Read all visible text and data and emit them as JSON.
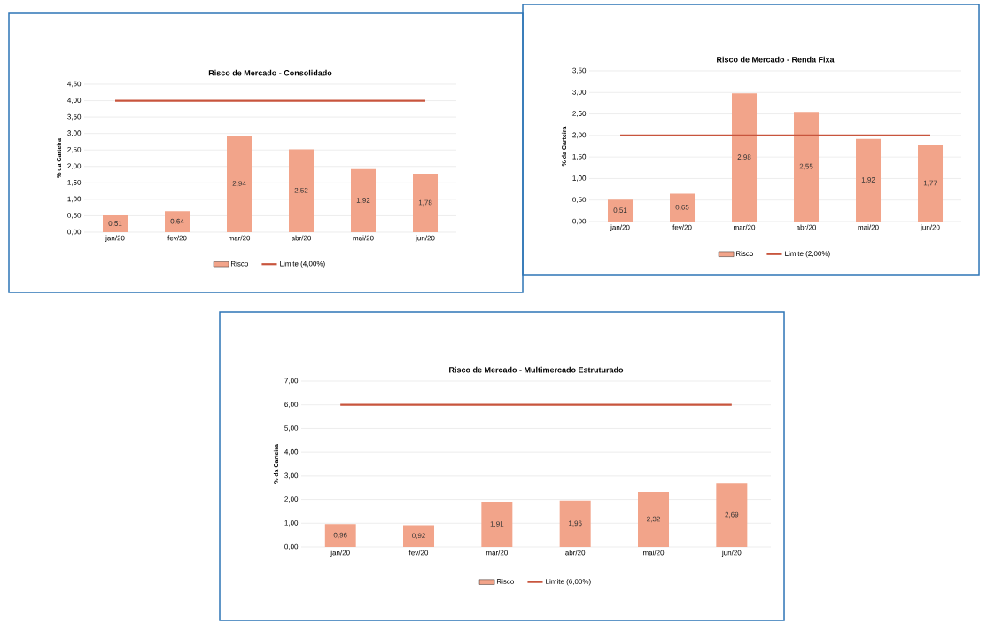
{
  "chart_data": [
    {
      "type": "bar",
      "title": "Risco de Mercado - Consolidado",
      "ylabel": "% da Carteira",
      "categories": [
        "jan/20",
        "fev/20",
        "mar/20",
        "abr/20",
        "mai/20",
        "jun/20"
      ],
      "series": [
        {
          "name": "Risco",
          "color": "#f2a48a",
          "values": [
            0.51,
            0.64,
            2.94,
            2.52,
            1.92,
            1.78
          ],
          "value_labels": [
            "0,51",
            "0,64",
            "2,94",
            "2,52",
            "1,92",
            "1,78"
          ]
        },
        {
          "name": "Limite (4,00%)",
          "type": "line",
          "color": "#c8553d",
          "values": [
            4.0,
            4.0,
            4.0,
            4.0,
            4.0,
            4.0
          ]
        }
      ],
      "ylim": [
        0,
        4.5
      ],
      "yticks": [
        {
          "value": 0,
          "label": "0,00"
        },
        {
          "value": 0.5,
          "label": "0,50"
        },
        {
          "value": 1,
          "label": "1,00"
        },
        {
          "value": 1.5,
          "label": "1,50"
        },
        {
          "value": 2,
          "label": "2,00"
        },
        {
          "value": 2.5,
          "label": "2,50"
        },
        {
          "value": 3,
          "label": "3,00"
        },
        {
          "value": 3.5,
          "label": "3,50"
        },
        {
          "value": 4,
          "label": "4,00"
        },
        {
          "value": 4.5,
          "label": "4,50"
        }
      ],
      "grid": "y",
      "legend": "bottom"
    },
    {
      "type": "bar",
      "title": "Risco de Mercado - Renda Fixa",
      "ylabel": "% da Carteira",
      "categories": [
        "jan/20",
        "fev/20",
        "mar/20",
        "abr/20",
        "mai/20",
        "jun/20"
      ],
      "series": [
        {
          "name": "Risco",
          "color": "#f2a48a",
          "values": [
            0.51,
            0.65,
            2.98,
            2.55,
            1.92,
            1.77
          ],
          "value_labels": [
            "0,51",
            "0,65",
            "2,98",
            "2,55",
            "1,92",
            "1,77"
          ]
        },
        {
          "name": "Limite (2,00%)",
          "type": "line",
          "color": "#c8553d",
          "values": [
            2.0,
            2.0,
            2.0,
            2.0,
            2.0,
            2.0
          ]
        }
      ],
      "ylim": [
        0,
        3.5
      ],
      "yticks": [
        {
          "value": 0,
          "label": "0,00"
        },
        {
          "value": 0.5,
          "label": "0,50"
        },
        {
          "value": 1,
          "label": "1,00"
        },
        {
          "value": 1.5,
          "label": "1,50"
        },
        {
          "value": 2,
          "label": "2,00"
        },
        {
          "value": 2.5,
          "label": "2,50"
        },
        {
          "value": 3,
          "label": "3,00"
        },
        {
          "value": 3.5,
          "label": "3,50"
        }
      ],
      "grid": "y",
      "legend": "bottom"
    },
    {
      "type": "bar",
      "title": "Risco de Mercado - Multimercado Estruturado",
      "ylabel": "% da Carteira",
      "categories": [
        "jan/20",
        "fev/20",
        "mar/20",
        "abr/20",
        "mai/20",
        "jun/20"
      ],
      "series": [
        {
          "name": "Risco",
          "color": "#f2a48a",
          "values": [
            0.96,
            0.92,
            1.91,
            1.96,
            2.32,
            2.69
          ],
          "value_labels": [
            "0,96",
            "0,92",
            "1,91",
            "1,96",
            "2,32",
            "2,69"
          ]
        },
        {
          "name": "Limite (6,00%)",
          "type": "line",
          "color": "#c8553d",
          "values": [
            6.0,
            6.0,
            6.0,
            6.0,
            6.0,
            6.0
          ]
        }
      ],
      "ylim": [
        0,
        7
      ],
      "yticks": [
        {
          "value": 0,
          "label": "0,00"
        },
        {
          "value": 1,
          "label": "1,00"
        },
        {
          "value": 2,
          "label": "2,00"
        },
        {
          "value": 3,
          "label": "3,00"
        },
        {
          "value": 4,
          "label": "4,00"
        },
        {
          "value": 5,
          "label": "5,00"
        },
        {
          "value": 6,
          "label": "6,00"
        },
        {
          "value": 7,
          "label": "7,00"
        }
      ],
      "grid": "y",
      "legend": "bottom"
    }
  ]
}
